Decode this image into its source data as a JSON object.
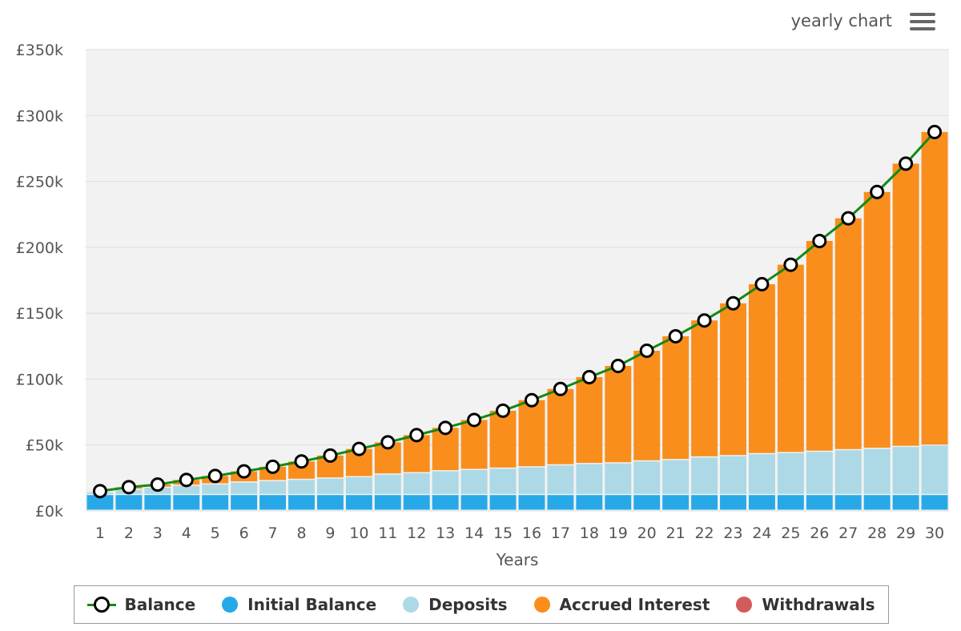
{
  "header": {
    "title": "yearly chart",
    "menu_icon": "hamburger-menu-icon"
  },
  "colors": {
    "initial_balance": "#27a9e8",
    "deposits": "#add8e6",
    "accrued_interest": "#f98e1d",
    "withdrawals": "#d45b5b",
    "balance_line": "#138a13",
    "plot_background": "#f2f2f2"
  },
  "chart_data": {
    "type": "bar",
    "stacked": true,
    "xlabel": "Years",
    "ylabel": "",
    "ylim": [
      0,
      350000
    ],
    "yticks": [
      "£0k",
      "£50k",
      "£100k",
      "£150k",
      "£200k",
      "£250k",
      "£300k",
      "£350k"
    ],
    "categories": [
      "1",
      "2",
      "3",
      "4",
      "5",
      "6",
      "7",
      "8",
      "9",
      "10",
      "11",
      "12",
      "13",
      "14",
      "15",
      "16",
      "17",
      "18",
      "19",
      "20",
      "21",
      "22",
      "23",
      "24",
      "25",
      "26",
      "27",
      "28",
      "29",
      "30"
    ],
    "series": [
      {
        "name": "Initial Balance",
        "kind": "bar",
        "values": [
          12000,
          12000,
          12000,
          12000,
          12000,
          12000,
          12000,
          12000,
          12000,
          12000,
          12000,
          12000,
          12000,
          12000,
          12000,
          12000,
          12000,
          12000,
          12000,
          12000,
          12000,
          12000,
          12000,
          12000,
          12000,
          12000,
          12000,
          12000,
          12000,
          12000
        ]
      },
      {
        "name": "Deposits",
        "kind": "bar",
        "values": [
          2000,
          4000,
          5500,
          7000,
          8000,
          9500,
          10500,
          11500,
          12500,
          13500,
          15500,
          16500,
          18000,
          19000,
          20000,
          21000,
          22500,
          23500,
          24000,
          25500,
          26500,
          28500,
          29500,
          31000,
          31800,
          32800,
          34000,
          35000,
          36500,
          37500
        ]
      },
      {
        "name": "Accrued Interest",
        "kind": "bar",
        "values": [
          1000,
          2000,
          2500,
          4500,
          6500,
          8500,
          11000,
          14000,
          17500,
          21500,
          24500,
          29000,
          33000,
          38000,
          44000,
          51000,
          58000,
          66000,
          74000,
          84000,
          94000,
          104000,
          116000,
          129000,
          143000,
          160000,
          176000,
          195000,
          215000,
          238000
        ]
      },
      {
        "name": "Withdrawals",
        "kind": "bar",
        "values": [
          0,
          0,
          0,
          0,
          0,
          0,
          0,
          0,
          0,
          0,
          0,
          0,
          0,
          0,
          0,
          0,
          0,
          0,
          0,
          0,
          0,
          0,
          0,
          0,
          0,
          0,
          0,
          0,
          0,
          0
        ]
      },
      {
        "name": "Balance",
        "kind": "line",
        "values": [
          15000,
          18000,
          20000,
          23500,
          26500,
          30000,
          33500,
          37500,
          42000,
          47000,
          52000,
          57500,
          63000,
          69000,
          76000,
          84000,
          92500,
          101500,
          110000,
          121500,
          132500,
          144500,
          157500,
          172000,
          186800,
          204800,
          222000,
          242000,
          263500,
          287500
        ]
      }
    ]
  },
  "legend": [
    {
      "label": "Balance",
      "type": "line"
    },
    {
      "label": "Initial Balance",
      "type": "dot",
      "color": "#27a9e8"
    },
    {
      "label": "Deposits",
      "type": "dot",
      "color": "#add8e6"
    },
    {
      "label": "Accrued Interest",
      "type": "dot",
      "color": "#f98e1d"
    },
    {
      "label": "Withdrawals",
      "type": "dot",
      "color": "#d45b5b"
    }
  ]
}
